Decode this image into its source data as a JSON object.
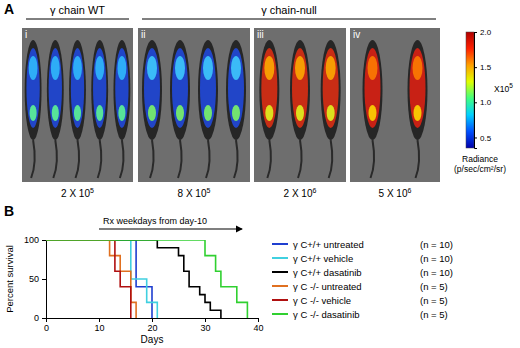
{
  "chart_data": [
    {
      "type": "image_panel",
      "panel_label": "A",
      "groups": [
        {
          "label": "γ chain WT"
        },
        {
          "label": "γ chain-null"
        }
      ],
      "images": [
        {
          "id": "i",
          "dose_base": "2 X 10",
          "dose_exp": "5"
        },
        {
          "id": "ii",
          "dose_base": "8 X 10",
          "dose_exp": "5"
        },
        {
          "id": "iii",
          "dose_base": "2 X 10",
          "dose_exp": "6"
        },
        {
          "id": "iv",
          "dose_base": "5 X 10",
          "dose_exp": "6"
        }
      ],
      "colorbar": {
        "range": [
          0.35,
          2.0
        ],
        "ticks": [
          0.5,
          {
            "value": 1,
            "label": "1.0"
          },
          1.5,
          {
            "value": 2,
            "label": "2.0"
          }
        ],
        "multiplier_base": "X10",
        "multiplier_exp": "5",
        "title": [
          "Radiance",
          "(p/sec/cm²/sr)"
        ],
        "colors": [
          "#0000aa",
          "#0050ff",
          "#00d0ff",
          "#40ff80",
          "#e0ff00",
          "#ffa000",
          "#ff2000",
          "#b00000"
        ]
      }
    },
    {
      "type": "line",
      "panel_label": "B",
      "annotation": {
        "text": "Rx weekdays from day-10",
        "x_start": 10,
        "x_end": 37
      },
      "xlabel": "Days",
      "ylabel": "Percent survival",
      "xlim": [
        0,
        40
      ],
      "xticks": [
        0,
        10,
        20,
        30,
        40
      ],
      "ylim": [
        0,
        100
      ],
      "yticks": [
        0,
        50,
        100
      ],
      "line_style": "step",
      "legend": "right",
      "series": [
        {
          "name": "γ C+/+ untreated",
          "n_label": "(n = 10)",
          "color": "#1f3fd0",
          "x": [
            0,
            17,
            20
          ],
          "values": [
            100,
            40,
            0
          ]
        },
        {
          "name": "γ C+/+ vehicle",
          "n_label": "(n = 10)",
          "color": "#40d0e0",
          "x": [
            0,
            16,
            19,
            21
          ],
          "values": [
            100,
            50,
            20,
            0
          ]
        },
        {
          "name": "γ C+/+ dasatinib",
          "n_label": "(n = 10)",
          "color": "#000000",
          "x": [
            0,
            21,
            25,
            26,
            27,
            29,
            30,
            31,
            33
          ],
          "values": [
            100,
            90,
            80,
            60,
            40,
            30,
            20,
            10,
            0
          ]
        },
        {
          "name": "γ C -/- untreated",
          "n_label": "(n = 5)",
          "color": "#e07020",
          "x": [
            0,
            12,
            14,
            16,
            17
          ],
          "values": [
            100,
            80,
            60,
            20,
            0
          ]
        },
        {
          "name": "γ C -/- vehicle",
          "n_label": "(n = 5)",
          "color": "#b01010",
          "x": [
            0,
            13,
            14,
            16
          ],
          "values": [
            100,
            60,
            40,
            0
          ]
        },
        {
          "name": "γ C -/- dasatinib",
          "n_label": "(n = 5)",
          "color": "#30d030",
          "x": [
            0,
            30,
            32,
            33,
            36,
            38
          ],
          "values": [
            100,
            80,
            60,
            40,
            20,
            0
          ]
        }
      ]
    }
  ]
}
